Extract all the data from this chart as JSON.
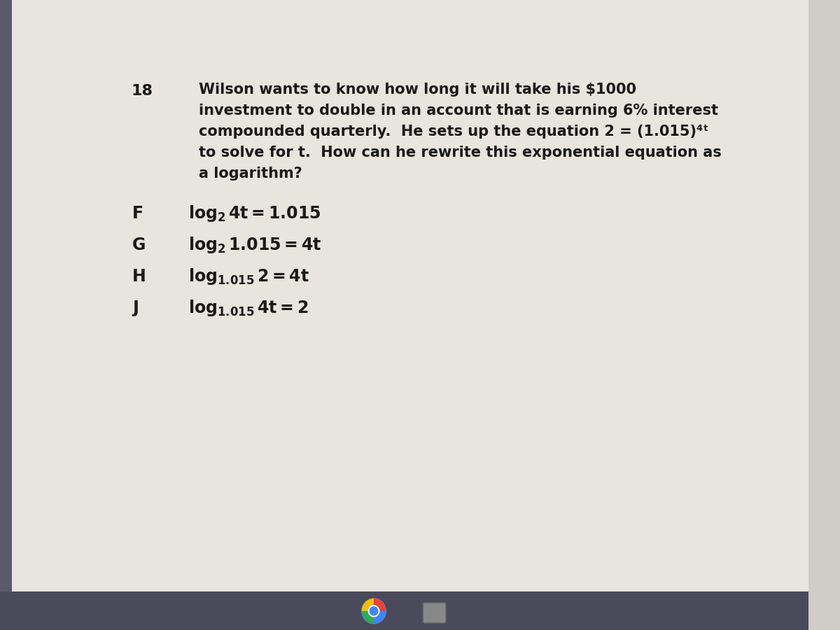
{
  "bg_color": "#d0ccc8",
  "content_bg": "#e8e4de",
  "question_number": "18",
  "question_text_lines": [
    "Wilson wants to know how long it will take his $1000",
    "investment to double in an account that is earning 6% interest",
    "compounded quarterly.  He sets up the equation 2 = (1.015)⁴ᵗ",
    "to solve for t.  How can he rewrite this exponential equation as",
    "a logarithm?"
  ],
  "choices": [
    {
      "letter": "F",
      "text": "log₂ 4t = 1.015"
    },
    {
      "letter": "G",
      "text": "log₂ 1.015 = 4t"
    },
    {
      "letter": "H",
      "text": "log₁.₀₁₅ 2 = 4t"
    },
    {
      "letter": "J",
      "text": "log₁.₀₁₅ 4t = 2"
    }
  ],
  "bottom_bar_color": "#4a4a5a",
  "left_bar_color": "#5a5a6a",
  "text_color": "#1a1a1a",
  "number_fontsize": 16,
  "question_fontsize": 15,
  "choice_fontsize": 17
}
